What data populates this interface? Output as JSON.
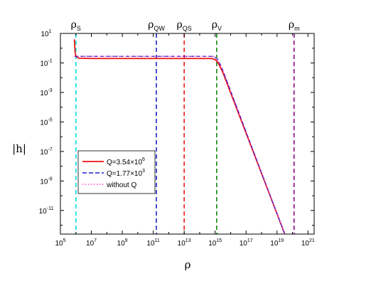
{
  "chart_data": {
    "type": "line",
    "title": "",
    "xlabel": "ρ",
    "ylabel": "|h|",
    "x_scale": "log10",
    "y_scale": "log10",
    "xlim_exp": [
      5,
      21.4
    ],
    "ylim_exp": [
      -12.6,
      1
    ],
    "xticks": [
      {
        "exp": 5,
        "base": "10",
        "sup": "5"
      },
      {
        "exp": 7,
        "base": "10",
        "sup": "7"
      },
      {
        "exp": 9,
        "base": "10",
        "sup": "9"
      },
      {
        "exp": 11,
        "base": "10",
        "sup": "11"
      },
      {
        "exp": 13,
        "base": "10",
        "sup": "13"
      },
      {
        "exp": 15,
        "base": "10",
        "sup": "15"
      },
      {
        "exp": 17,
        "base": "10",
        "sup": "17"
      },
      {
        "exp": 19,
        "base": "10",
        "sup": "19"
      },
      {
        "exp": 21,
        "base": "10",
        "sup": "21"
      }
    ],
    "yticks": [
      {
        "exp": 1,
        "base": "10",
        "sup": "1"
      },
      {
        "exp": -1,
        "base": "10",
        "sup": "-1"
      },
      {
        "exp": -3,
        "base": "10",
        "sup": "-3"
      },
      {
        "exp": -5,
        "base": "10",
        "sup": "-5"
      },
      {
        "exp": -7,
        "base": "10",
        "sup": "-7"
      },
      {
        "exp": -9,
        "base": "10",
        "sup": "-9"
      },
      {
        "exp": -11,
        "base": "10",
        "sup": "-11"
      }
    ],
    "vlines": [
      {
        "log_x": 6.0,
        "color": "#00dddd",
        "label_base": "ρ",
        "label_sub": "S"
      },
      {
        "log_x": 11.2,
        "color": "#1f1fcc",
        "label_base": "ρ",
        "label_sub": "QW"
      },
      {
        "log_x": 13.0,
        "color": "#ee1c1c",
        "label_base": "ρ",
        "label_sub": "QS"
      },
      {
        "log_x": 15.1,
        "color": "#118811",
        "label_base": "ρ",
        "label_sub": "V"
      },
      {
        "log_x": 20.1,
        "color": "#880088",
        "label_base": "ρ",
        "label_sub": "m"
      }
    ],
    "series": [
      {
        "name": "Q=3.54×10⁶",
        "legend_main": "Q=3.54×10",
        "legend_sup": "6",
        "color": "#ee1111",
        "dash": "solid",
        "points": [
          [
            5.9,
            0.6
          ],
          [
            5.95,
            -0.3
          ],
          [
            6.0,
            -0.55
          ],
          [
            6.2,
            -0.68
          ],
          [
            7.0,
            -0.7
          ],
          [
            13.0,
            -0.7
          ],
          [
            14.8,
            -0.7
          ],
          [
            15.05,
            -0.8
          ],
          [
            15.25,
            -1.1
          ],
          [
            15.5,
            -1.65
          ],
          [
            19.5,
            -12.6
          ]
        ]
      },
      {
        "name": "Q=1.77×10³",
        "legend_main": "Q=1.77×10",
        "legend_sup": "3",
        "color": "#1f1fcc",
        "dash": "dash",
        "points": [
          [
            5.9,
            -0.55
          ],
          [
            14.9,
            -0.55
          ],
          [
            15.15,
            -0.75
          ],
          [
            15.35,
            -1.15
          ],
          [
            15.55,
            -1.65
          ],
          [
            19.5,
            -12.6
          ]
        ]
      },
      {
        "name": "without Q",
        "legend_main": "without Q",
        "legend_sup": "",
        "color": "#ff44cc",
        "dash": "dot",
        "points": [
          [
            5.9,
            -0.55
          ],
          [
            14.9,
            -0.55
          ],
          [
            15.15,
            -0.75
          ],
          [
            15.35,
            -1.15
          ],
          [
            15.55,
            -1.65
          ],
          [
            19.5,
            -12.6
          ]
        ]
      }
    ]
  }
}
